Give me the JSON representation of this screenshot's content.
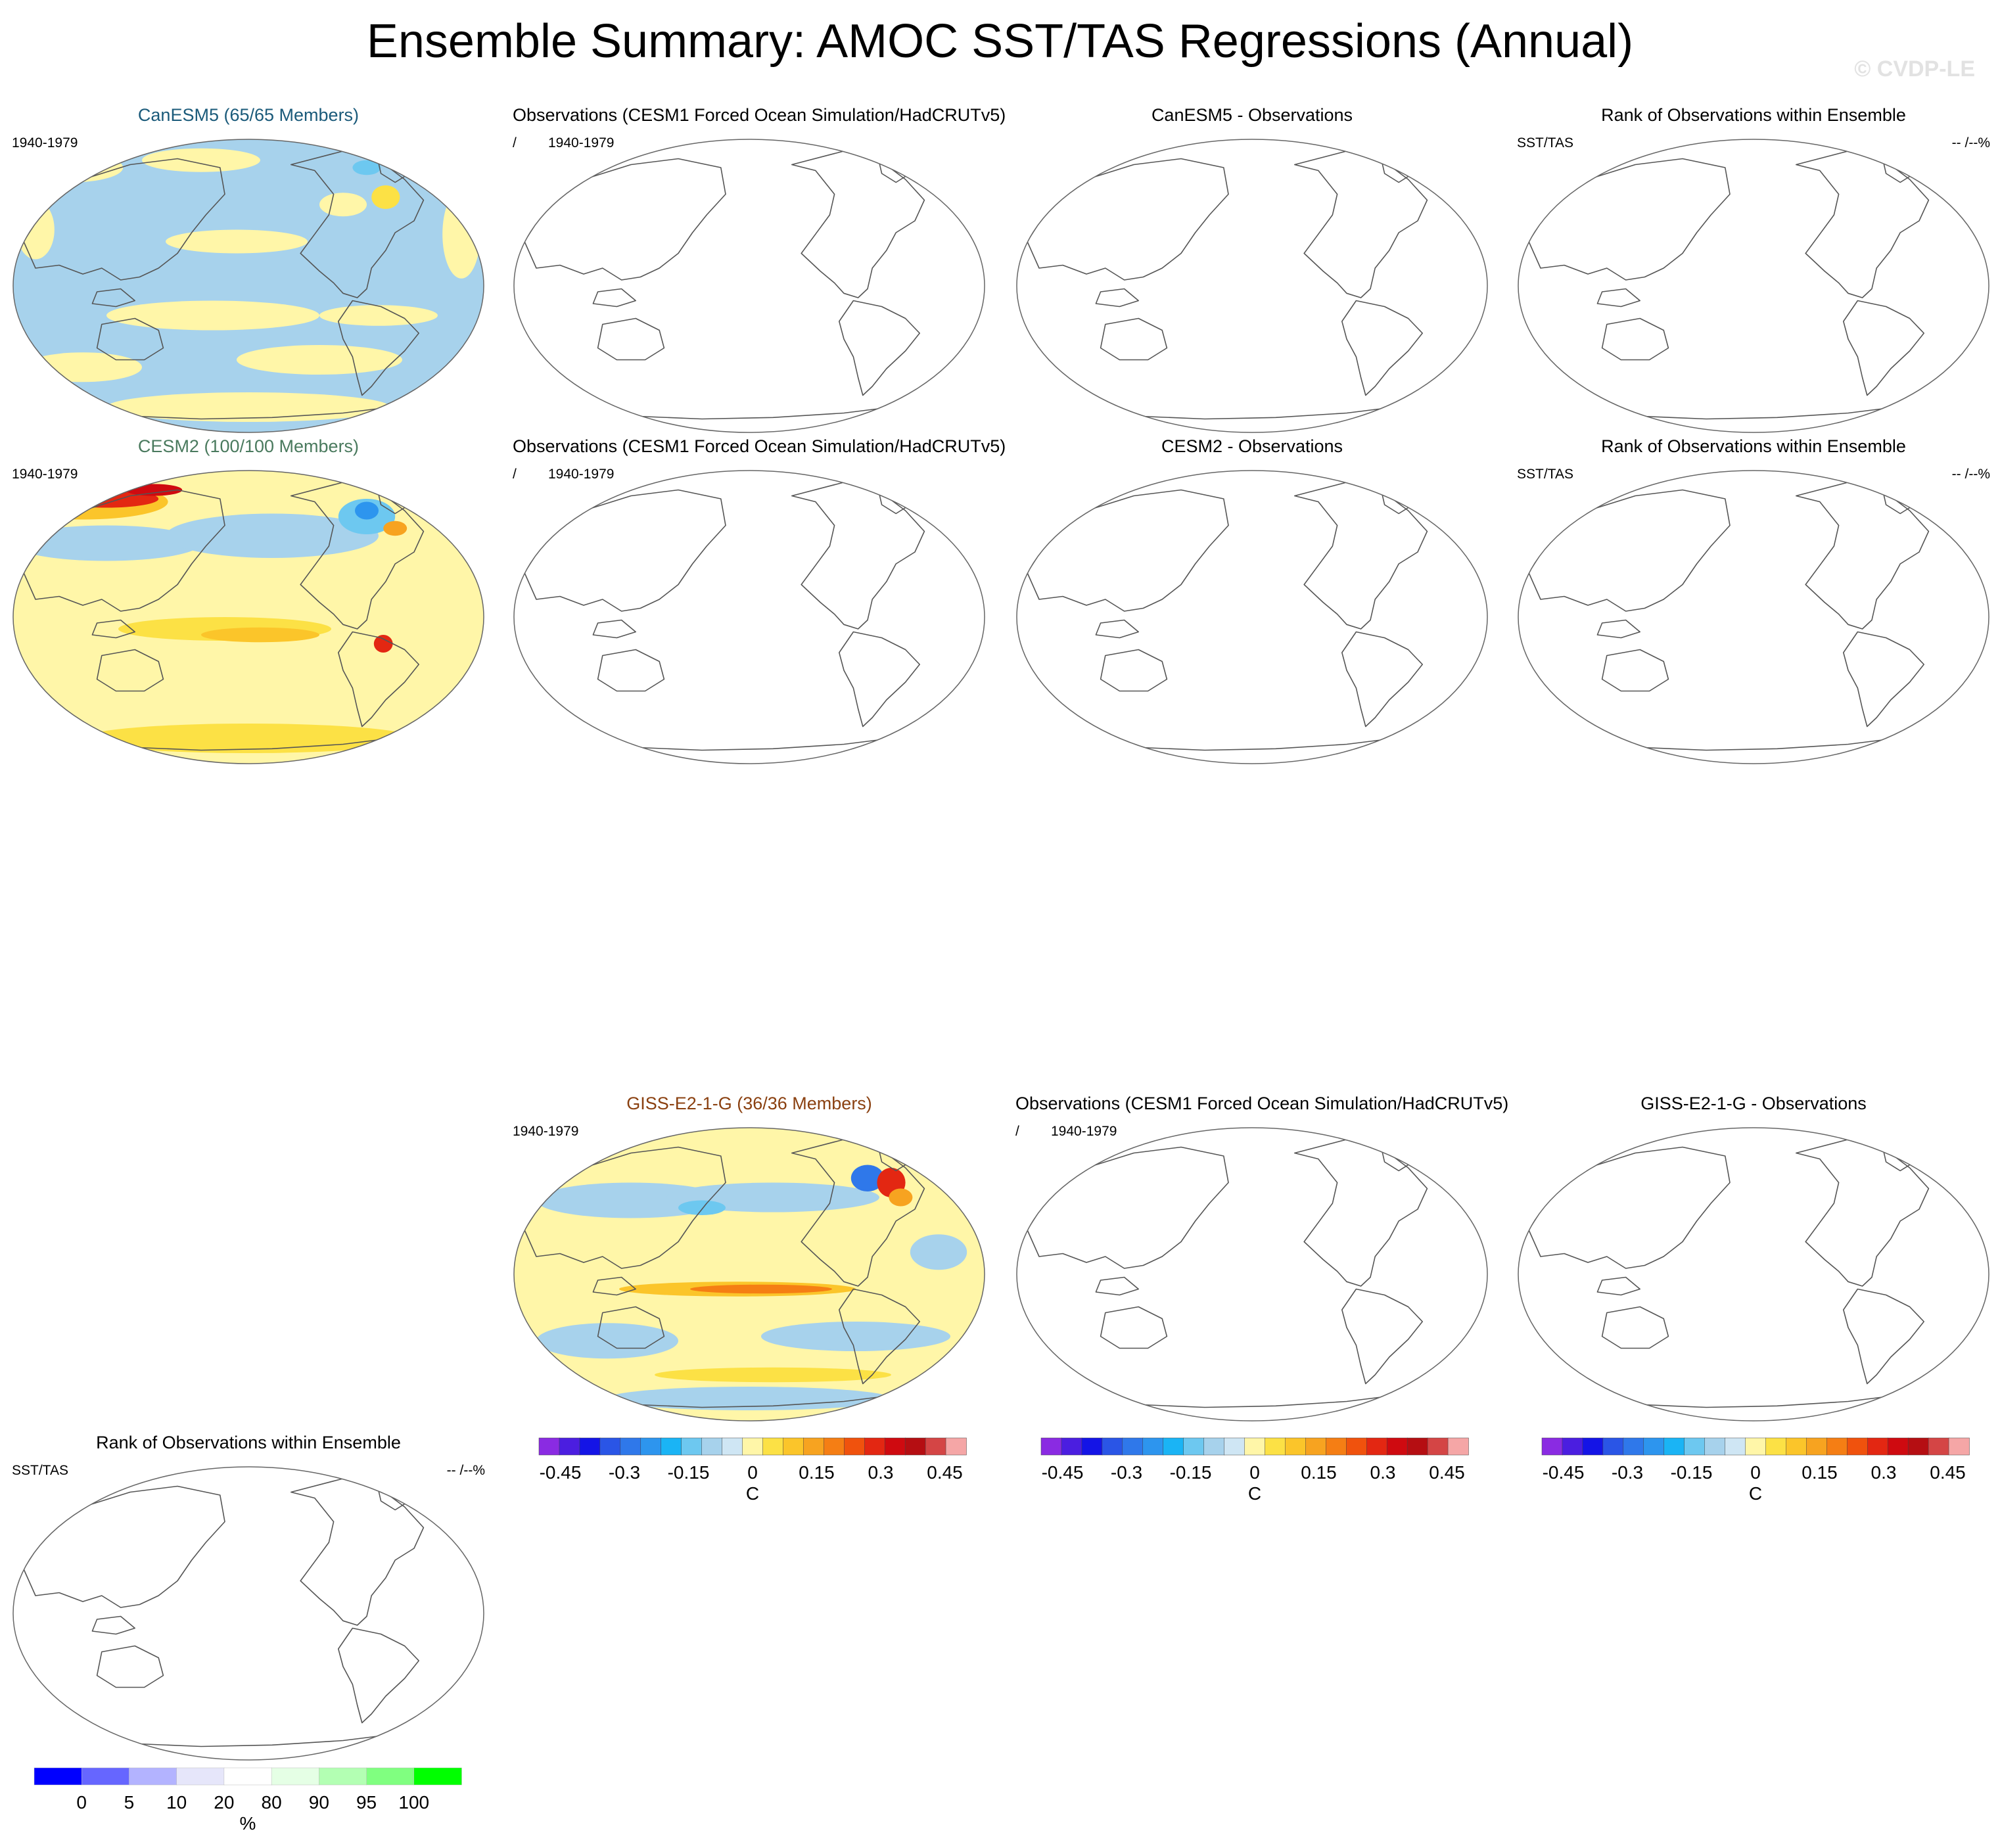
{
  "figure": {
    "title": "Ensemble Summary: AMOC SST/TAS Regressions (Annual)",
    "copyright": "© CVDP-LE"
  },
  "chart_data": [
    {
      "type": "heatmap",
      "panel_id": "canesm5-ens",
      "title": "CanESM5 (65/65 Members)",
      "title_color": "#1a5a7a",
      "left_label": "1940-1979",
      "right_label": "",
      "pattern": "canesm5"
    },
    {
      "type": "heatmap",
      "panel_id": "canesm5-obs",
      "title": "Observations (CESM1 Forced Ocean Simulation/HadCRUTv5)",
      "left_label": "/",
      "left_label2": "1940-1979",
      "right_label": "",
      "pattern": "empty"
    },
    {
      "type": "heatmap",
      "panel_id": "canesm5-diff",
      "title": "CanESM5 - Observations",
      "left_label": "",
      "right_label": "",
      "pattern": "empty"
    },
    {
      "type": "heatmap",
      "panel_id": "canesm5-rank",
      "title": "Rank of Observations within Ensemble",
      "left_label": "SST/TAS",
      "right_label": "-- /--%",
      "pattern": "empty"
    },
    {
      "type": "heatmap",
      "panel_id": "cesm2-ens",
      "title": "CESM2 (100/100 Members)",
      "title_color": "#4a7a5e",
      "left_label": "1940-1979",
      "right_label": "",
      "pattern": "cesm2"
    },
    {
      "type": "heatmap",
      "panel_id": "cesm2-obs",
      "title": "Observations (CESM1 Forced Ocean Simulation/HadCRUTv5)",
      "left_label": "/",
      "left_label2": "1940-1979",
      "right_label": "",
      "pattern": "empty"
    },
    {
      "type": "heatmap",
      "panel_id": "cesm2-diff",
      "title": "CESM2 - Observations",
      "left_label": "",
      "right_label": "",
      "pattern": "empty"
    },
    {
      "type": "heatmap",
      "panel_id": "cesm2-rank",
      "title": "Rank of Observations within Ensemble",
      "left_label": "SST/TAS",
      "right_label": "-- /--%",
      "pattern": "empty"
    },
    {
      "type": "heatmap",
      "panel_id": "giss-ens",
      "title": "GISS-E2-1-G (36/36 Members)",
      "title_color": "#8a4010",
      "left_label": "1940-1979",
      "right_label": "",
      "pattern": "giss"
    },
    {
      "type": "heatmap",
      "panel_id": "giss-obs",
      "title": "Observations (CESM1 Forced Ocean Simulation/HadCRUTv5)",
      "left_label": "/",
      "left_label2": "1940-1979",
      "right_label": "",
      "pattern": "empty"
    },
    {
      "type": "heatmap",
      "panel_id": "giss-diff",
      "title": "GISS-E2-1-G - Observations",
      "left_label": "",
      "right_label": "",
      "pattern": "empty"
    },
    {
      "type": "heatmap",
      "panel_id": "giss-rank",
      "title": "Rank of Observations within Ensemble",
      "left_label": "SST/TAS",
      "right_label": "-- /--%",
      "pattern": "empty"
    }
  ],
  "colorbars": {
    "regression": {
      "unit": "C",
      "colors": [
        "#8a2be2",
        "#4b1ee0",
        "#1414e6",
        "#2a55e6",
        "#2f78ea",
        "#2d95ee",
        "#1ab4f5",
        "#6dc8f0",
        "#a7d2ec",
        "#cfe6f4",
        "#fff6a8",
        "#fce145",
        "#fbc52a",
        "#f7a320",
        "#f57e14",
        "#f0520d",
        "#e32712",
        "#cf0a10",
        "#b50e12",
        "#d44545",
        "#f5a6a6"
      ],
      "tick_values": [
        -0.45,
        -0.3,
        -0.15,
        0,
        0.15,
        0.3,
        0.45
      ],
      "tick_labels": [
        "-0.45",
        "-0.3",
        "-0.15",
        "0",
        "0.15",
        "0.3",
        "0.45"
      ],
      "range": [
        -0.5,
        0.5
      ]
    },
    "rank": {
      "unit": "%",
      "colors": [
        "#0000ff",
        "#6666ff",
        "#b3b3ff",
        "#e6e6fa",
        "#ffffff",
        "#e5ffe5",
        "#b3ffb3",
        "#80ff80",
        "#00ff00"
      ],
      "tick_labels": [
        "0",
        "5",
        "10",
        "20",
        "80",
        "90",
        "95",
        "100"
      ]
    }
  }
}
